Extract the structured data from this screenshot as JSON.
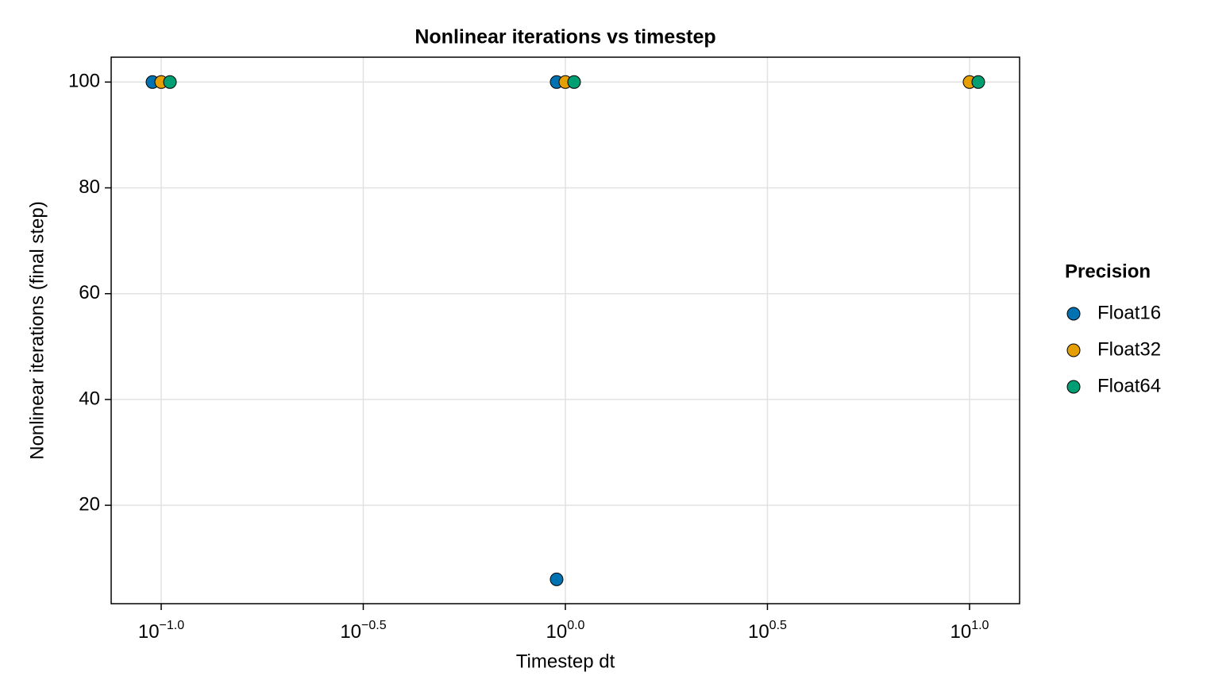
{
  "chart_data": {
    "type": "scatter",
    "title": "Nonlinear iterations vs timestep",
    "x_label": "Timestep dt",
    "y_label": "Nonlinear iterations (final step)",
    "log_x": true,
    "grid": true,
    "legend_title": "Precision",
    "legend_position": "right",
    "xlim": [
      0.0752,
      13.3
    ],
    "ylim": [
      1.4,
      104.7
    ],
    "xticks": [
      {
        "value": 0.1,
        "label": "10^−1.0"
      },
      {
        "value": 0.3162,
        "label": "10^−0.5"
      },
      {
        "value": 1,
        "label": "10^0.0"
      },
      {
        "value": 3.162,
        "label": "10^0.5"
      },
      {
        "value": 10,
        "label": "10^1.0"
      }
    ],
    "yticks": [
      20,
      40,
      60,
      80,
      100
    ],
    "series": [
      {
        "name": "Float16",
        "color": "#0072b2",
        "x": [
          0.1,
          1,
          1
        ],
        "values": [
          100,
          100,
          6
        ]
      },
      {
        "name": "Float32",
        "color": "#e69f00",
        "x": [
          0.1,
          1,
          10
        ],
        "values": [
          100,
          100,
          100
        ]
      },
      {
        "name": "Float64",
        "color": "#009e73",
        "x": [
          0.1,
          1,
          10
        ],
        "values": [
          100,
          100,
          100
        ]
      }
    ]
  }
}
